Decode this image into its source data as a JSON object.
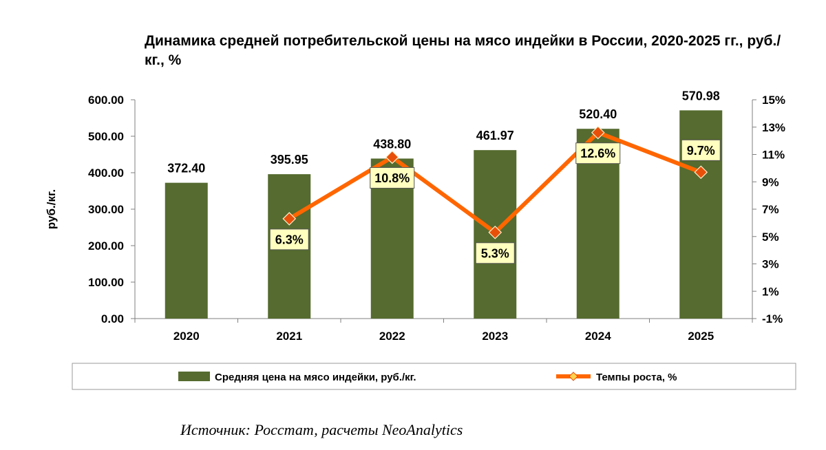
{
  "chart_data": {
    "type": "bar+line",
    "title": "Динамика средней потребительской цены на мясо индейки в России, 2020-2025 гг., руб./кг., %",
    "categories": [
      "2020",
      "2021",
      "2022",
      "2023",
      "2024",
      "2025"
    ],
    "series": [
      {
        "name": "Средняя цена на мясо индейки, руб./кг.",
        "type": "bar",
        "axis": "left",
        "color": "#556b2f",
        "values": [
          372.4,
          395.95,
          438.8,
          461.97,
          520.4,
          570.98
        ],
        "labels": [
          "372.40",
          "395.95",
          "438.80",
          "461.97",
          "520.40",
          "570.98"
        ]
      },
      {
        "name": "Темпы роста, %",
        "type": "line",
        "axis": "right",
        "color": "#ff6600",
        "marker_color": "#e8500a",
        "values": [
          null,
          6.3,
          10.8,
          5.3,
          12.6,
          9.7
        ],
        "labels": [
          "",
          "6.3%",
          "10.8%",
          "5.3%",
          "12.6%",
          "9.7%"
        ]
      }
    ],
    "y_left": {
      "label": "руб./кг.",
      "ylim": [
        0,
        600
      ],
      "ticks": [
        0,
        100,
        200,
        300,
        400,
        500,
        600
      ],
      "tick_labels": [
        "0.00",
        "100.00",
        "200.00",
        "300.00",
        "400.00",
        "500.00",
        "600.00"
      ]
    },
    "y_right": {
      "ylim": [
        -1,
        15
      ],
      "ticks": [
        -1,
        1,
        3,
        5,
        7,
        9,
        11,
        13,
        15
      ],
      "tick_labels": [
        "-1%",
        "1%",
        "3%",
        "5%",
        "7%",
        "9%",
        "11%",
        "13%",
        "15%"
      ]
    },
    "legend_position": "bottom",
    "grid": false
  },
  "source": "Источник: Росстат, расчеты NeoAnalytics"
}
